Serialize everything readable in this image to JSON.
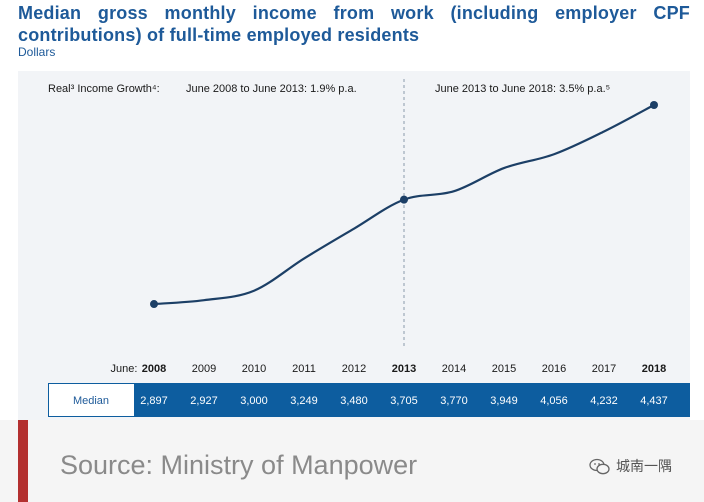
{
  "header": {
    "title": "Median gross monthly income from work (including employer CPF contributions) of full-time employed residents",
    "units": "Dollars"
  },
  "chart_data": {
    "type": "line",
    "title": "Median gross monthly income from work (including employer CPF contributions) of full-time employed residents",
    "ylabel": "Dollars",
    "xlabel": "June:",
    "x": [
      2008,
      2009,
      2010,
      2011,
      2012,
      2013,
      2014,
      2015,
      2016,
      2017,
      2018
    ],
    "series": [
      {
        "name": "Median",
        "values": [
          2897,
          2927,
          3000,
          3249,
          3480,
          3705,
          3770,
          3949,
          4056,
          4232,
          4437
        ]
      }
    ],
    "ylim": [
      2000,
      4700
    ],
    "grid": false,
    "divider_year": 2013,
    "growth_label": "Real³ Income Growth⁴:",
    "growth_periods": [
      "June 2008 to June 2013: 1.9% p.a.",
      "June 2013 to June 2018: 3.5% p.a.⁵"
    ],
    "table": {
      "row_label": "Median",
      "cells": [
        "2,897",
        "2,927",
        "3,000",
        "3,249",
        "3,480",
        "3,705",
        "3,770",
        "3,949",
        "4,056",
        "4,232",
        "4,437"
      ]
    }
  },
  "footer": {
    "source": "Source: Ministry of Manpower",
    "watermark": "城南一隅"
  },
  "colors": {
    "title": "#1e5a99",
    "line": "#1c3f66",
    "table_bg": "#0d5d9f",
    "accent_bar": "#b3302f"
  }
}
